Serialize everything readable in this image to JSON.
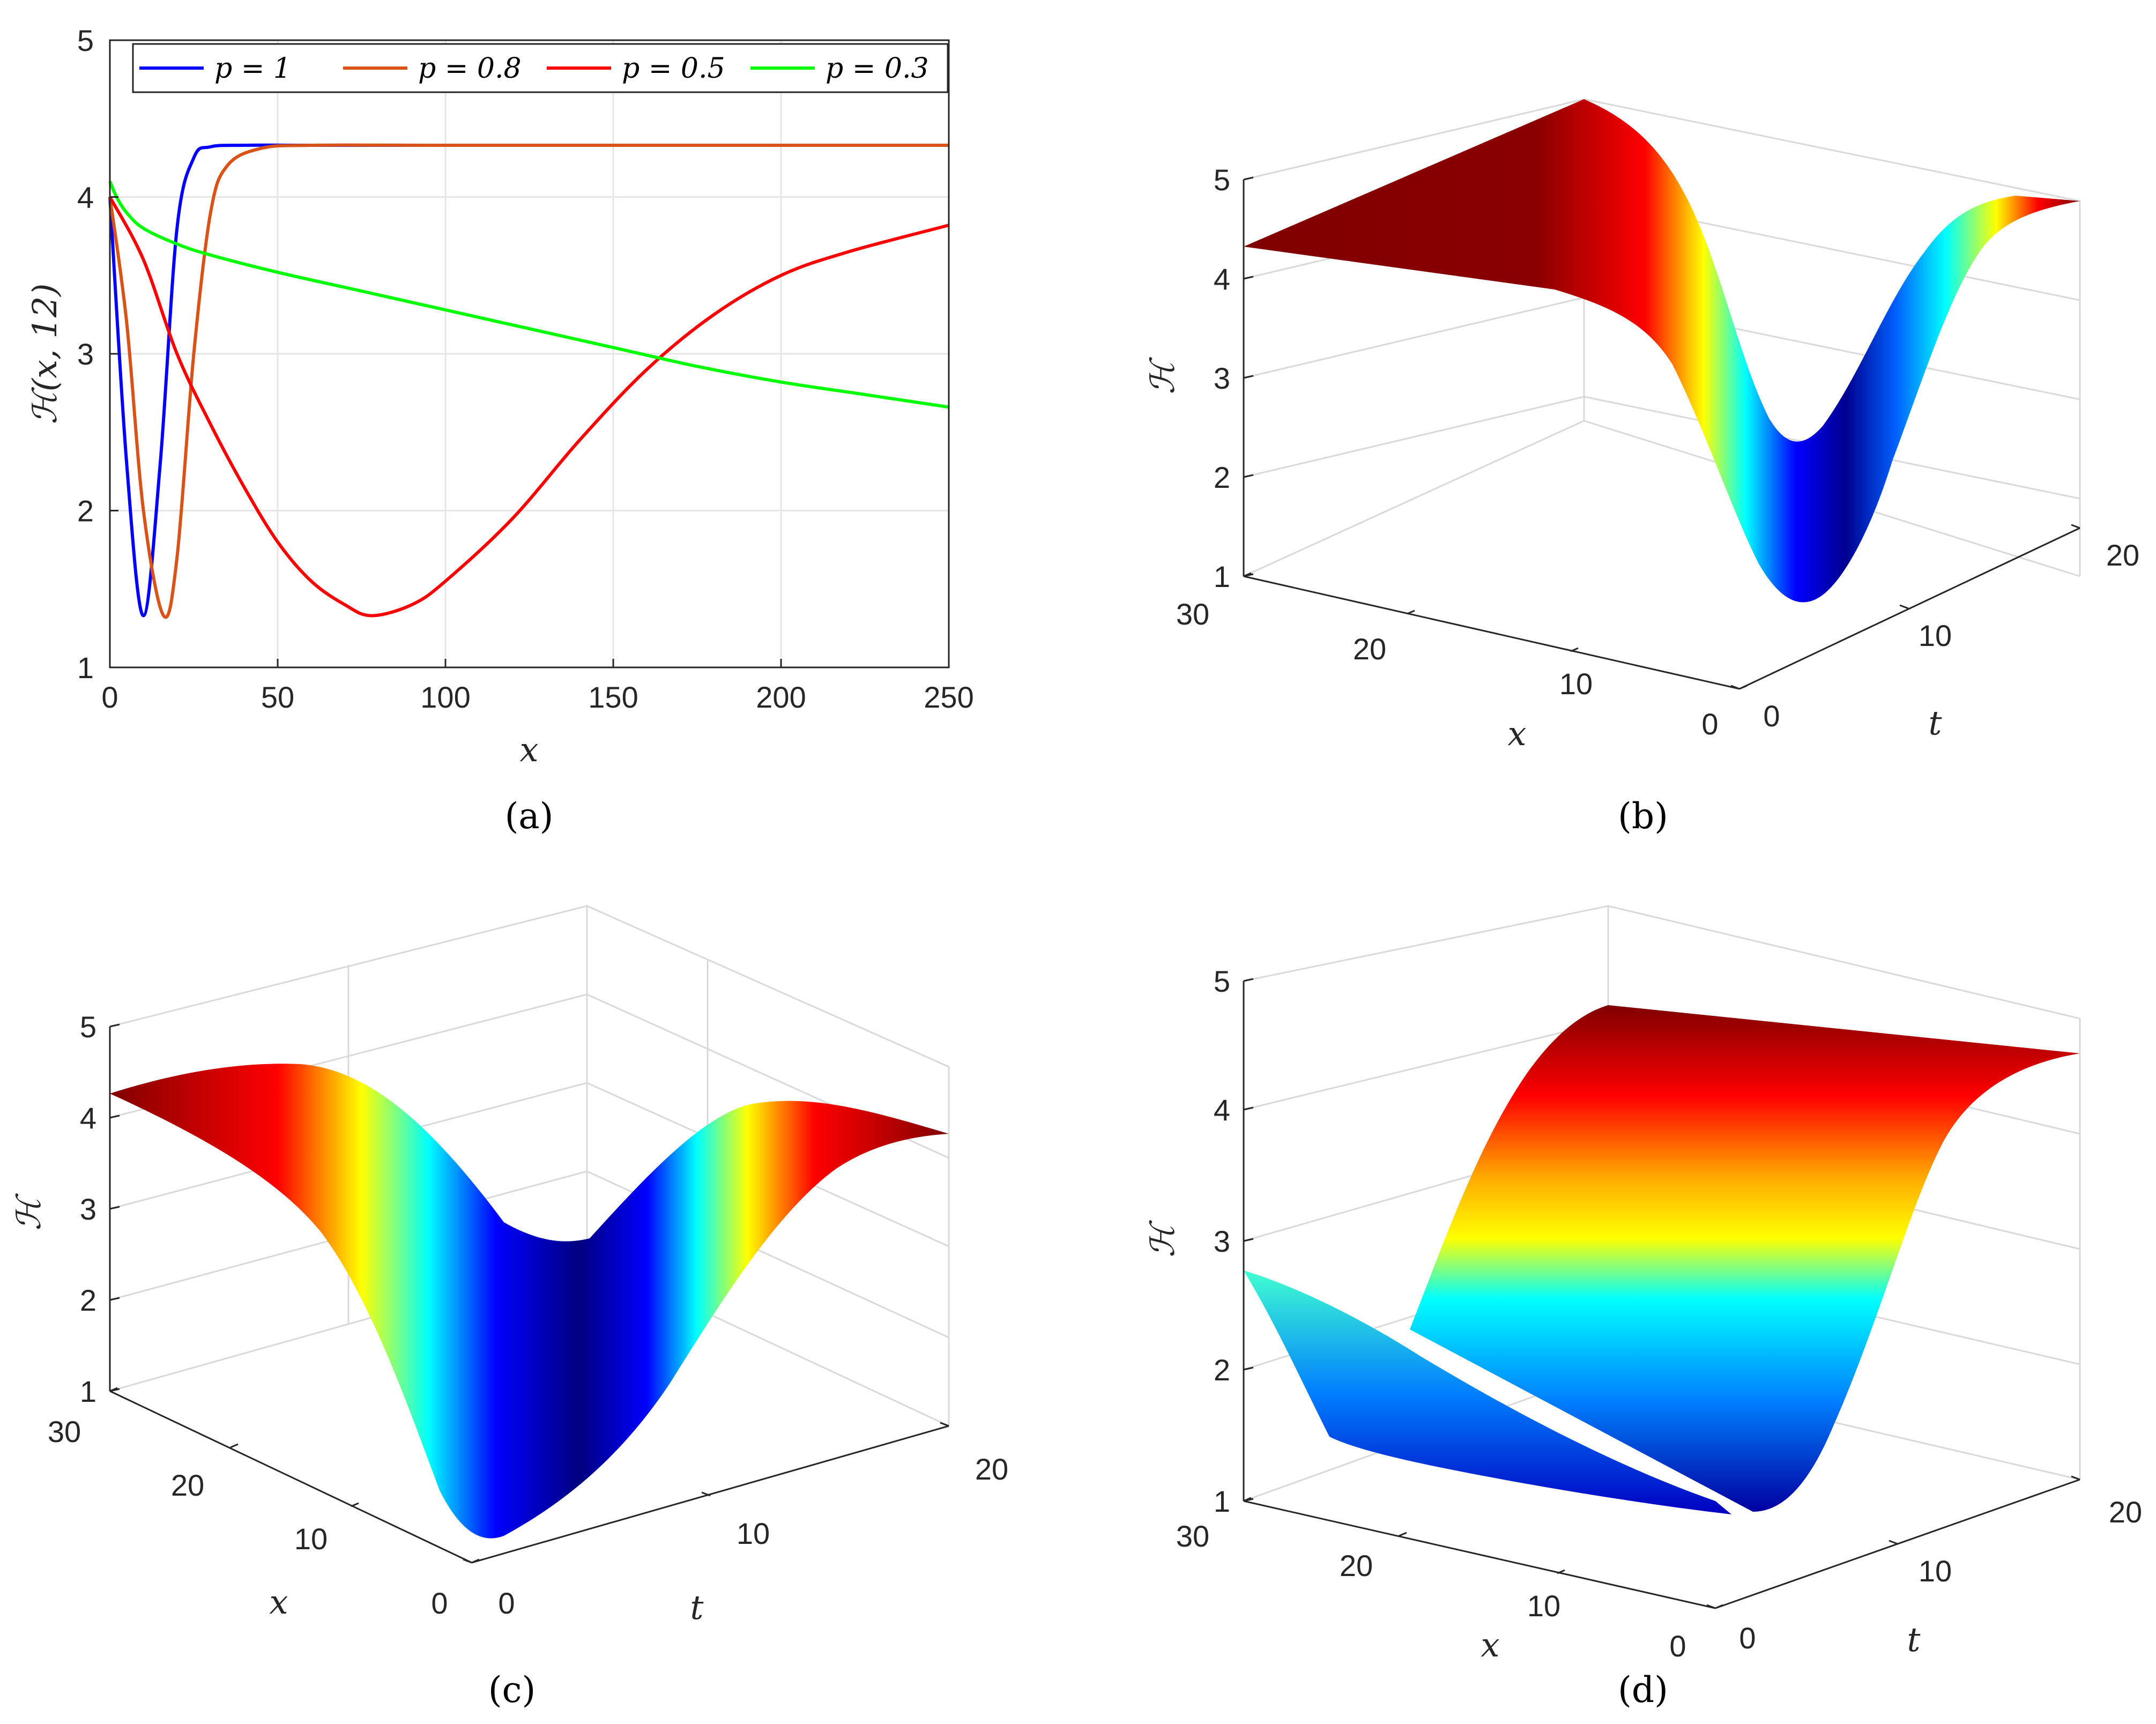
{
  "chart_data": [
    {
      "panel": "(a)",
      "type": "line",
      "xlabel": "x",
      "ylabel": "ℋ(x, 12)",
      "xlim": [
        0,
        250
      ],
      "ylim": [
        1,
        5
      ],
      "xticks": [
        "0",
        "50",
        "100",
        "150",
        "200",
        "250"
      ],
      "yticks": [
        "1",
        "2",
        "3",
        "4",
        "5"
      ],
      "grid": true,
      "legend": "top, horizontal",
      "series": [
        {
          "name": "p = 1",
          "color": "#0000ff",
          "x": [
            0,
            5,
            10,
            15,
            20,
            25,
            30,
            40,
            60,
            100,
            150,
            200,
            250
          ],
          "y": [
            4.0,
            2.3,
            1.33,
            2.3,
            3.8,
            4.25,
            4.32,
            4.33,
            4.33,
            4.33,
            4.33,
            4.33,
            4.33
          ]
        },
        {
          "name": "p = 0.8",
          "color": "#d95319",
          "x": [
            0,
            5,
            10,
            16,
            20,
            25,
            30,
            35,
            45,
            60,
            100,
            150,
            200,
            250
          ],
          "y": [
            4.0,
            3.2,
            2.0,
            1.33,
            1.7,
            3.0,
            3.9,
            4.2,
            4.31,
            4.33,
            4.33,
            4.33,
            4.33,
            4.33
          ]
        },
        {
          "name": "p = 0.5",
          "color": "#ff0000",
          "x": [
            0,
            10,
            20,
            30,
            40,
            50,
            60,
            70,
            78,
            90,
            100,
            120,
            140,
            160,
            180,
            200,
            220,
            250
          ],
          "y": [
            4.0,
            3.6,
            3.0,
            2.55,
            2.15,
            1.8,
            1.55,
            1.4,
            1.33,
            1.4,
            1.55,
            1.95,
            2.45,
            2.9,
            3.25,
            3.5,
            3.65,
            3.82
          ]
        },
        {
          "name": "p = 0.3",
          "color": "#00ff00",
          "x": [
            0,
            2,
            5,
            10,
            20,
            30,
            50,
            75,
            100,
            125,
            150,
            175,
            200,
            225,
            250
          ],
          "y": [
            4.1,
            4.0,
            3.9,
            3.8,
            3.7,
            3.63,
            3.52,
            3.4,
            3.28,
            3.16,
            3.04,
            2.92,
            2.82,
            2.74,
            2.66
          ]
        }
      ]
    },
    {
      "panel": "(b)",
      "type": "surface",
      "xlabel": "x",
      "ylabel": "t",
      "zlabel": "ℋ",
      "xticks": [
        "0",
        "10",
        "20",
        "30"
      ],
      "yticks": [
        "0",
        "10",
        "20"
      ],
      "zticks": [
        "1",
        "2",
        "3",
        "4",
        "5"
      ],
      "zlim": [
        1,
        5
      ],
      "colormap": "jet"
    },
    {
      "panel": "(c)",
      "type": "surface",
      "xlabel": "x",
      "ylabel": "t",
      "zlabel": "ℋ",
      "xticks": [
        "0",
        "10",
        "20",
        "30"
      ],
      "yticks": [
        "0",
        "10",
        "20"
      ],
      "zticks": [
        "1",
        "2",
        "3",
        "4",
        "5"
      ],
      "zlim": [
        1,
        5
      ],
      "colormap": "jet"
    },
    {
      "panel": "(d)",
      "type": "surface",
      "xlabel": "x",
      "ylabel": "t",
      "zlabel": "ℋ",
      "xticks": [
        "0",
        "10",
        "20",
        "30"
      ],
      "yticks": [
        "0",
        "10",
        "20"
      ],
      "zticks": [
        "1",
        "2",
        "3",
        "4",
        "5"
      ],
      "zlim": [
        1,
        5
      ],
      "colormap": "jet"
    }
  ],
  "captions": {
    "a": "(a)",
    "b": "(b)",
    "c": "(c)",
    "d": "(d)"
  },
  "legend_symbol": "p = "
}
